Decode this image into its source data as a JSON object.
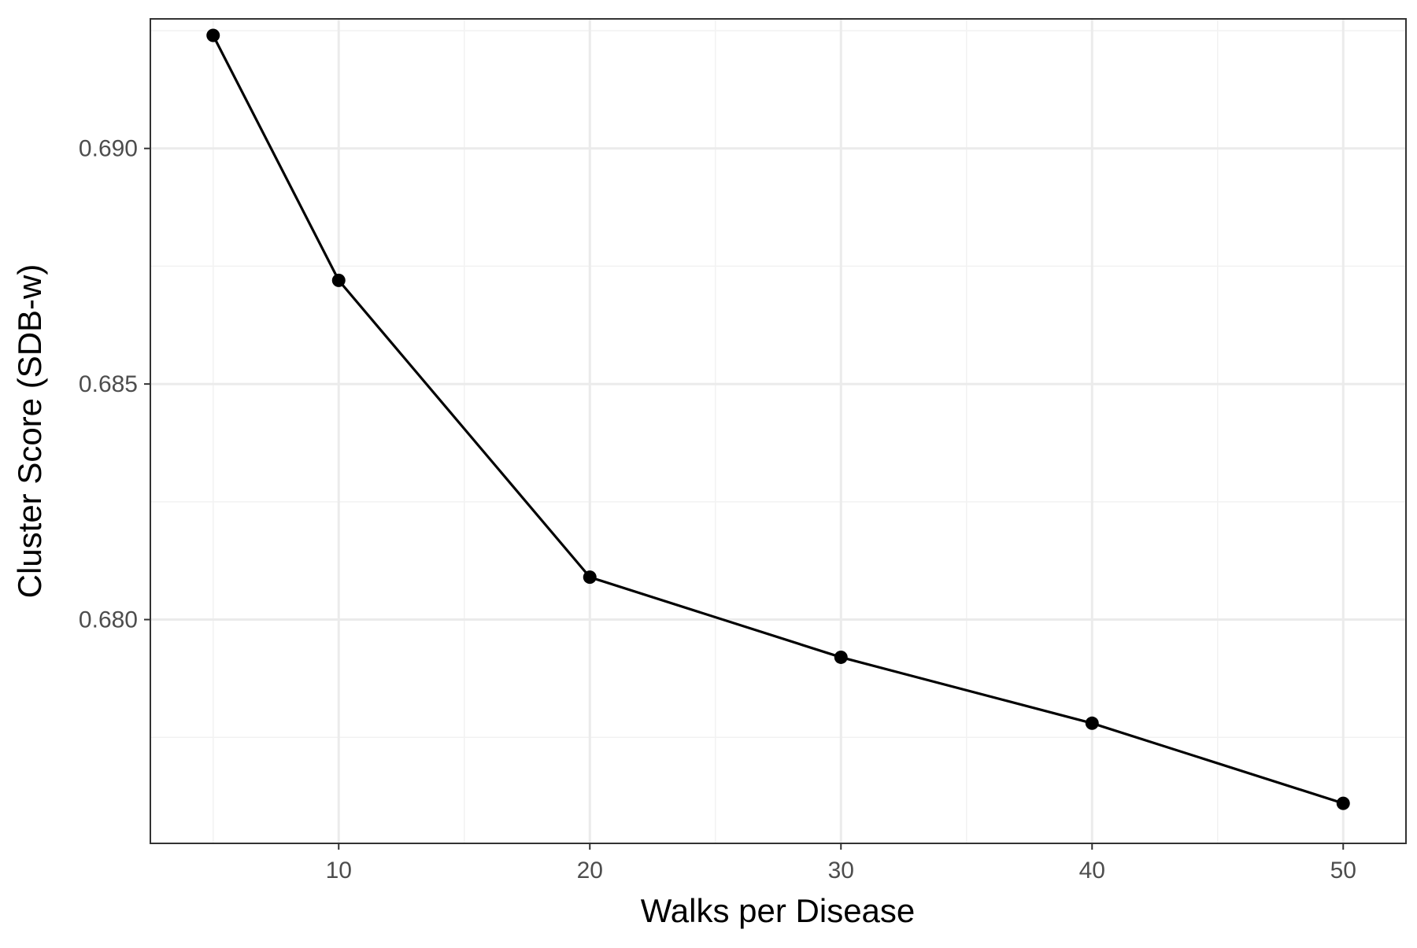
{
  "chart_data": {
    "type": "line",
    "title": "",
    "xlabel": "Walks per Disease",
    "ylabel": "Cluster Score (SDB-w)",
    "x": [
      5,
      10,
      20,
      30,
      40,
      50
    ],
    "series": [
      {
        "values": [
          0.6924,
          0.6872,
          0.6809,
          0.6792,
          0.6778,
          0.6761
        ]
      }
    ],
    "xlim": [
      2.5,
      52.5
    ],
    "ylim": [
      0.67525,
      0.69275
    ],
    "x_ticks": [
      10,
      20,
      30,
      40,
      50
    ],
    "x_tick_labels": [
      "10",
      "20",
      "30",
      "40",
      "50"
    ],
    "y_ticks": [
      0.68,
      0.685,
      0.69
    ],
    "y_tick_labels": [
      "0.680",
      "0.685",
      "0.690"
    ],
    "x_minor_ticks": [
      5,
      15,
      25,
      35,
      45
    ],
    "y_minor_ticks": [
      0.6775,
      0.6825,
      0.6875,
      0.6925
    ],
    "grid": true,
    "legend": "none",
    "colors": {
      "line": "#000000",
      "points": "#000000",
      "grid_major": "#ebebeb",
      "grid_minor": "#f2f2f2",
      "panel_border": "#333333",
      "tick_label": "#4d4d4d"
    }
  }
}
